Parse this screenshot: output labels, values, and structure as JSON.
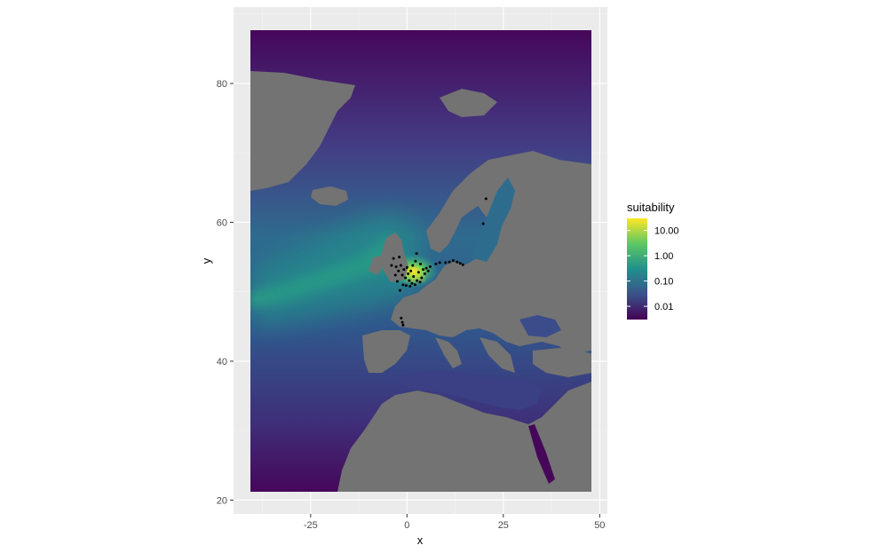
{
  "chart_data": {
    "type": "heatmap",
    "title": "",
    "xlabel": "x",
    "ylabel": "y",
    "xlim": [
      -45,
      52
    ],
    "ylim": [
      18,
      91
    ],
    "x_ticks": [
      {
        "value": -25,
        "label": "-25"
      },
      {
        "value": 0,
        "label": "0"
      },
      {
        "value": 25,
        "label": "25"
      },
      {
        "value": 50,
        "label": "50"
      }
    ],
    "y_ticks": [
      {
        "value": 20,
        "label": "20"
      },
      {
        "value": 40,
        "label": "40"
      },
      {
        "value": 60,
        "label": "60"
      },
      {
        "value": 80,
        "label": "80"
      }
    ],
    "raster_extent": {
      "x": [
        -40,
        50
      ],
      "y": [
        20,
        90
      ]
    },
    "grid": true,
    "panel_background": "#ebebeb",
    "land_color": "#737373",
    "legend": {
      "title": "suitability",
      "position": "right",
      "scale": "log10",
      "range": [
        0.003,
        30
      ],
      "breaks": [
        {
          "value": 0.01,
          "label": "0.01"
        },
        {
          "value": 0.1,
          "label": "0.10"
        },
        {
          "value": 1,
          "label": "1.00"
        },
        {
          "value": 10,
          "label": "10.00"
        }
      ],
      "colors": [
        "#440154",
        "#3b528b",
        "#21908c",
        "#5dc863",
        "#fde725"
      ]
    },
    "occurrence_points": [
      {
        "x": -3.5,
        "y": 54.8
      },
      {
        "x": -2.8,
        "y": 53.6
      },
      {
        "x": -2.2,
        "y": 53.0
      },
      {
        "x": -1.6,
        "y": 53.8
      },
      {
        "x": -1.2,
        "y": 52.4
      },
      {
        "x": -0.8,
        "y": 53.2
      },
      {
        "x": -0.4,
        "y": 52.0
      },
      {
        "x": 0.0,
        "y": 53.5
      },
      {
        "x": 0.3,
        "y": 52.6
      },
      {
        "x": 0.6,
        "y": 51.6
      },
      {
        "x": 1.0,
        "y": 53.0
      },
      {
        "x": 1.3,
        "y": 51.2
      },
      {
        "x": 1.7,
        "y": 52.2
      },
      {
        "x": 2.1,
        "y": 51.0
      },
      {
        "x": 2.6,
        "y": 51.6
      },
      {
        "x": 3.0,
        "y": 52.8
      },
      {
        "x": 3.4,
        "y": 51.4
      },
      {
        "x": 3.8,
        "y": 52.0
      },
      {
        "x": 4.2,
        "y": 53.2
      },
      {
        "x": 4.6,
        "y": 52.6
      },
      {
        "x": 5.0,
        "y": 53.4
      },
      {
        "x": 5.5,
        "y": 53.0
      },
      {
        "x": -1.0,
        "y": 51.0
      },
      {
        "x": -0.2,
        "y": 50.9
      },
      {
        "x": 0.8,
        "y": 50.8
      },
      {
        "x": 2.5,
        "y": 55.5
      },
      {
        "x": 3.5,
        "y": 54.0
      },
      {
        "x": 6.0,
        "y": 53.6
      },
      {
        "x": 7.5,
        "y": 54.0
      },
      {
        "x": 8.5,
        "y": 54.2
      },
      {
        "x": 10.0,
        "y": 54.2
      },
      {
        "x": 11.0,
        "y": 54.3
      },
      {
        "x": 12.0,
        "y": 54.5
      },
      {
        "x": 13.0,
        "y": 54.3
      },
      {
        "x": 13.8,
        "y": 54.1
      },
      {
        "x": 14.5,
        "y": 53.9
      },
      {
        "x": 20.5,
        "y": 63.4
      },
      {
        "x": 19.8,
        "y": 59.8
      },
      {
        "x": -1.8,
        "y": 50.2
      },
      {
        "x": -1.5,
        "y": 46.2
      },
      {
        "x": -1.2,
        "y": 45.6
      },
      {
        "x": -1.0,
        "y": 45.2
      },
      {
        "x": -2.5,
        "y": 51.5
      },
      {
        "x": -3.0,
        "y": 52.4
      },
      {
        "x": -4.0,
        "y": 53.8
      },
      {
        "x": -2.0,
        "y": 55.0
      },
      {
        "x": 1.5,
        "y": 53.8
      },
      {
        "x": 2.2,
        "y": 54.4
      }
    ]
  }
}
